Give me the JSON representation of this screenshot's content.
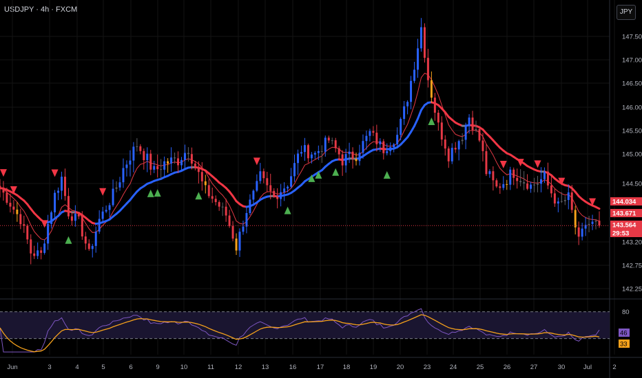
{
  "header": {
    "symbol": "USDJPY",
    "interval": "4h",
    "source": "FXCM",
    "separator": " · "
  },
  "currency_button": "JPY",
  "colors": {
    "background": "#000000",
    "grid": "#141414",
    "axis_text": "#b2b5be",
    "candle_up": "#2962ff",
    "candle_down": "#e63946",
    "candle_neutral": "#5d5f66",
    "candle_orange": "#f7a21b",
    "ema_slow_up": "#2962ff",
    "ema_slow_down": "#f23645",
    "ema_neutral": "#787b86",
    "ema_fast": "#e53945",
    "buy_signal": "#4caf50",
    "sell_signal": "#f23645",
    "rsi": "#7e57c2",
    "rsi_signal": "#f7a21b",
    "rsi_band": "#1a1530",
    "price_line": "#e63946"
  },
  "chart_data": [
    {
      "type": "candlestick",
      "symbol": "USDJPY",
      "interval": "4h",
      "source": "FXCM",
      "y_axis_ticks": [
        "147.500",
        "147.000",
        "146.500",
        "146.000",
        "145.500",
        "145.000",
        "144.500",
        "143.200",
        "142.750",
        "142.250"
      ],
      "ylim": [
        142.1,
        148.4
      ],
      "x_axis_ticks": [
        "Jun",
        "3",
        "4",
        "5",
        "6",
        "9",
        "10",
        "11",
        "12",
        "13",
        "16",
        "17",
        "18",
        "19",
        "20",
        "23",
        "24",
        "25",
        "26",
        "27",
        "30",
        "Jul",
        "2"
      ],
      "price_labels": [
        {
          "text": "144.034",
          "color": "#e63946",
          "value": 144.034
        },
        {
          "text": "143.671",
          "color": "#e63946",
          "value": 143.671
        },
        {
          "text": "143.564",
          "color": "#e63946",
          "value": 143.564
        },
        {
          "text": "29:53",
          "color": "#e63946",
          "value": 143.4
        }
      ],
      "last_price": 143.564,
      "ohlc_anchor": [
        [
          0,
          144.4
        ],
        [
          6,
          143.7
        ],
        [
          9,
          143.0
        ],
        [
          12,
          142.95
        ],
        [
          16,
          144.25
        ],
        [
          18,
          144.6
        ],
        [
          20,
          143.85
        ],
        [
          23,
          143.65
        ],
        [
          26,
          142.95
        ],
        [
          29,
          143.7
        ],
        [
          32,
          144.1
        ],
        [
          36,
          144.75
        ],
        [
          40,
          145.2
        ],
        [
          45,
          144.7
        ],
        [
          48,
          144.85
        ],
        [
          52,
          144.9
        ],
        [
          55,
          145.1
        ],
        [
          60,
          144.35
        ],
        [
          64,
          144.0
        ],
        [
          66,
          143.8
        ],
        [
          69,
          143.1
        ],
        [
          72,
          143.9
        ],
        [
          76,
          144.6
        ],
        [
          80,
          144.2
        ],
        [
          84,
          144.5
        ],
        [
          88,
          145.1
        ],
        [
          92,
          145.0
        ],
        [
          96,
          145.3
        ],
        [
          100,
          144.9
        ],
        [
          104,
          145.0
        ],
        [
          108,
          145.45
        ],
        [
          112,
          145.1
        ],
        [
          116,
          145.4
        ],
        [
          119,
          146.2
        ],
        [
          121,
          146.9
        ],
        [
          123,
          147.7
        ],
        [
          125,
          146.6
        ],
        [
          128,
          145.6
        ],
        [
          131,
          145.0
        ],
        [
          135,
          145.4
        ],
        [
          137,
          145.8
        ],
        [
          140,
          145.3
        ],
        [
          142,
          144.7
        ],
        [
          145,
          144.4
        ],
        [
          150,
          144.7
        ],
        [
          155,
          144.45
        ],
        [
          159,
          144.6
        ],
        [
          163,
          144.0
        ],
        [
          166,
          144.2
        ],
        [
          169,
          143.2
        ],
        [
          171,
          143.6
        ]
      ],
      "buy_signals_at": [
        20,
        44,
        46,
        58,
        84,
        91,
        93,
        98,
        113,
        126
      ],
      "sell_signals_at": [
        1,
        4,
        13,
        16,
        30,
        75,
        147,
        152,
        157,
        164,
        173
      ]
    },
    {
      "type": "line",
      "indicator": "RSI",
      "y_axis_ticks": [
        "80"
      ],
      "levels": [
        80,
        30
      ],
      "ylim": [
        0,
        100
      ],
      "current_values": [
        {
          "text": "46",
          "color": "#7e57c2",
          "value": 46
        },
        {
          "text": "33",
          "color": "#f7a21b",
          "value": 33
        }
      ]
    }
  ]
}
